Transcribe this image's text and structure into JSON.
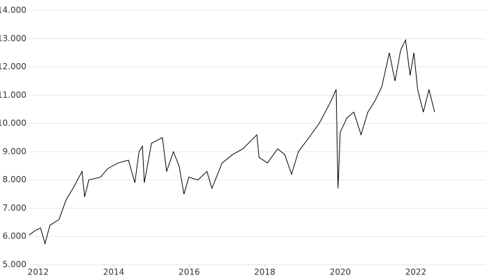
{
  "chart_data": {
    "type": "line",
    "x": [
      2011.76,
      2011.91,
      2012.06,
      2012.18,
      2012.31,
      2012.55,
      2012.74,
      2012.92,
      2013.16,
      2013.23,
      2013.34,
      2013.65,
      2013.84,
      2014.11,
      2014.39,
      2014.56,
      2014.67,
      2014.76,
      2014.81,
      2015.0,
      2015.29,
      2015.4,
      2015.58,
      2015.73,
      2015.86,
      2015.99,
      2016.23,
      2016.47,
      2016.6,
      2016.87,
      2017.15,
      2017.42,
      2017.79,
      2017.85,
      2018.07,
      2018.34,
      2018.53,
      2018.71,
      2018.89,
      2019.17,
      2019.44,
      2019.72,
      2019.89,
      2019.94,
      2020.0,
      2020.18,
      2020.36,
      2020.55,
      2020.73,
      2020.92,
      2021.1,
      2021.3,
      2021.45,
      2021.6,
      2021.73,
      2021.85,
      2021.95,
      2022.05,
      2022.2,
      2022.35,
      2022.5
    ],
    "series": [
      {
        "color": "#000000",
        "values": [
          6050,
          6200,
          6300,
          5750,
          6400,
          6600,
          7300,
          7700,
          8300,
          7400,
          8000,
          8100,
          8400,
          8600,
          8700,
          7900,
          9000,
          9200,
          7900,
          9300,
          9500,
          8300,
          9000,
          8500,
          7500,
          8100,
          8000,
          8300,
          7700,
          8600,
          8900,
          9100,
          9600,
          8800,
          8600,
          9100,
          8900,
          8200,
          9000,
          9500,
          10000,
          10700,
          11200,
          7700,
          9700,
          10200,
          10400,
          9600,
          10400,
          10800,
          11300,
          12500,
          11500,
          12600,
          12950,
          11700,
          12500,
          11200,
          10400,
          11200,
          10400
        ]
      }
    ],
    "xlim": [
      2011.76,
      2023.86
    ],
    "xticks": [
      2012,
      2014,
      2016,
      2018,
      2020,
      2022
    ],
    "ylim": [
      5000,
      14000
    ],
    "yticks": [
      {
        "value": 5000,
        "label": "5.000"
      },
      {
        "value": 6000,
        "label": "6.000"
      },
      {
        "value": 7000,
        "label": "7.000"
      },
      {
        "value": 8000,
        "label": "8.000"
      },
      {
        "value": 9000,
        "label": "9.000"
      },
      {
        "value": 10000,
        "label": "10.000"
      },
      {
        "value": 11000,
        "label": "11.000"
      },
      {
        "value": 12000,
        "label": "12.000"
      },
      {
        "value": 13000,
        "label": "13.000"
      },
      {
        "value": 14000,
        "label": "14.000"
      }
    ],
    "grid": true
  }
}
